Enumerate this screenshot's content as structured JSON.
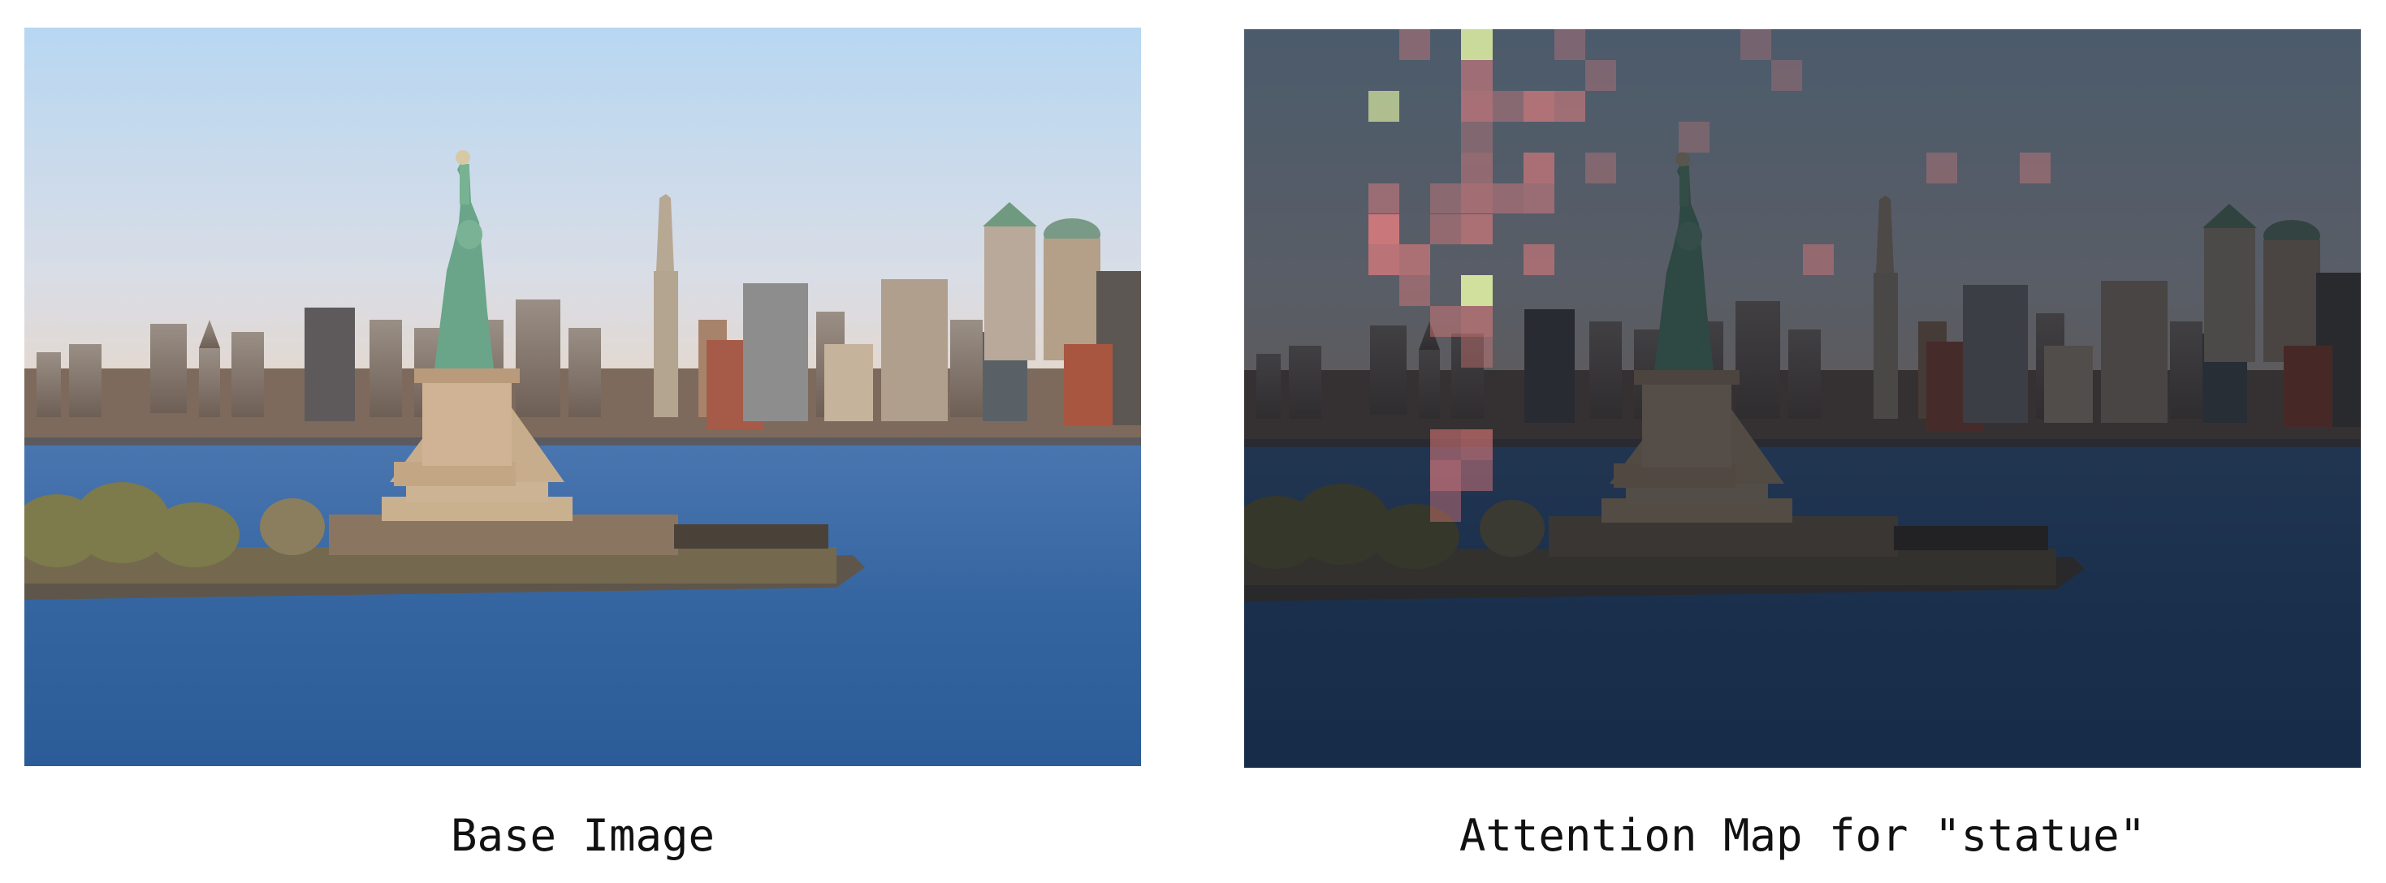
{
  "panels": {
    "base": {
      "caption": "Base Image"
    },
    "attention": {
      "caption": "Attention Map for \"statue\""
    }
  },
  "colors": {
    "sky_top": "#b8d8f0",
    "sky_bottom": "#e8d7c5",
    "water_top": "#3e6aa8",
    "water_bottom": "#2a5a96",
    "statue": "#6aa58a",
    "pedestal": "#c9a983",
    "island": "#6b6150",
    "trees": "#7a7a50",
    "dim_overlay": "rgba(10,15,25,0.62)",
    "attention_hot": "#f08080",
    "attention_peak": "#d8e8a0"
  },
  "attention_grid": {
    "rows": 24,
    "cols": 36,
    "cells": [
      {
        "r": 0,
        "c": 5,
        "v": 0.35
      },
      {
        "r": 0,
        "c": 7,
        "v": 0.9,
        "peak": true
      },
      {
        "r": 0,
        "c": 10,
        "v": 0.3
      },
      {
        "r": 0,
        "c": 16,
        "v": 0.25
      },
      {
        "r": 1,
        "c": 7,
        "v": 0.5
      },
      {
        "r": 1,
        "c": 11,
        "v": 0.3
      },
      {
        "r": 1,
        "c": 17,
        "v": 0.25
      },
      {
        "r": 2,
        "c": 4,
        "v": 0.7,
        "peak": true
      },
      {
        "r": 2,
        "c": 7,
        "v": 0.55
      },
      {
        "r": 2,
        "c": 8,
        "v": 0.35
      },
      {
        "r": 2,
        "c": 9,
        "v": 0.6
      },
      {
        "r": 2,
        "c": 10,
        "v": 0.5
      },
      {
        "r": 3,
        "c": 7,
        "v": 0.3
      },
      {
        "r": 3,
        "c": 14,
        "v": 0.25
      },
      {
        "r": 4,
        "c": 7,
        "v": 0.4
      },
      {
        "r": 4,
        "c": 9,
        "v": 0.55
      },
      {
        "r": 4,
        "c": 11,
        "v": 0.3
      },
      {
        "r": 4,
        "c": 22,
        "v": 0.3
      },
      {
        "r": 4,
        "c": 25,
        "v": 0.35
      },
      {
        "r": 5,
        "c": 4,
        "v": 0.45
      },
      {
        "r": 5,
        "c": 6,
        "v": 0.35
      },
      {
        "r": 5,
        "c": 7,
        "v": 0.5
      },
      {
        "r": 5,
        "c": 8,
        "v": 0.4
      },
      {
        "r": 5,
        "c": 9,
        "v": 0.45
      },
      {
        "r": 6,
        "c": 4,
        "v": 0.75
      },
      {
        "r": 6,
        "c": 6,
        "v": 0.4
      },
      {
        "r": 6,
        "c": 7,
        "v": 0.55
      },
      {
        "r": 7,
        "c": 4,
        "v": 0.65
      },
      {
        "r": 7,
        "c": 5,
        "v": 0.55
      },
      {
        "r": 7,
        "c": 9,
        "v": 0.5
      },
      {
        "r": 7,
        "c": 18,
        "v": 0.4
      },
      {
        "r": 8,
        "c": 5,
        "v": 0.4
      },
      {
        "r": 8,
        "c": 7,
        "v": 0.95,
        "peak": true
      },
      {
        "r": 9,
        "c": 6,
        "v": 0.4
      },
      {
        "r": 9,
        "c": 7,
        "v": 0.5
      },
      {
        "r": 10,
        "c": 7,
        "v": 0.35
      },
      {
        "r": 13,
        "c": 6,
        "v": 0.5
      },
      {
        "r": 13,
        "c": 7,
        "v": 0.55
      },
      {
        "r": 14,
        "c": 6,
        "v": 0.6
      },
      {
        "r": 14,
        "c": 7,
        "v": 0.45
      },
      {
        "r": 15,
        "c": 6,
        "v": 0.4
      }
    ]
  }
}
